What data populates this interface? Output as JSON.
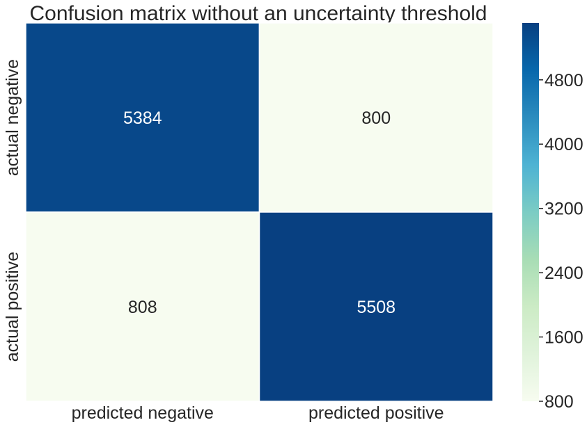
{
  "chart_data": {
    "type": "heatmap",
    "title": "Confusion matrix without an uncertainty threshold",
    "x_categories": [
      "predicted negative",
      "predicted positive"
    ],
    "y_categories": [
      "actual negative",
      "actual positive"
    ],
    "values": [
      [
        5384,
        800
      ],
      [
        808,
        5508
      ]
    ],
    "annotation_colors": {
      "dark_cell": "#ffffff",
      "light_cell": "#262626"
    },
    "colorbar": {
      "colormap": "GnBu",
      "vmin": 800,
      "vmax": 5508,
      "ticks": [
        800,
        1600,
        2400,
        3200,
        4000,
        4800
      ]
    },
    "colors": {
      "low": "#f7fcf0",
      "high": "#084081",
      "annotation_dark_text": "#262626",
      "annotation_light_text": "#ffffff",
      "grid_line": "#ffffff"
    },
    "grid": false,
    "legend": "colorbar-right"
  }
}
